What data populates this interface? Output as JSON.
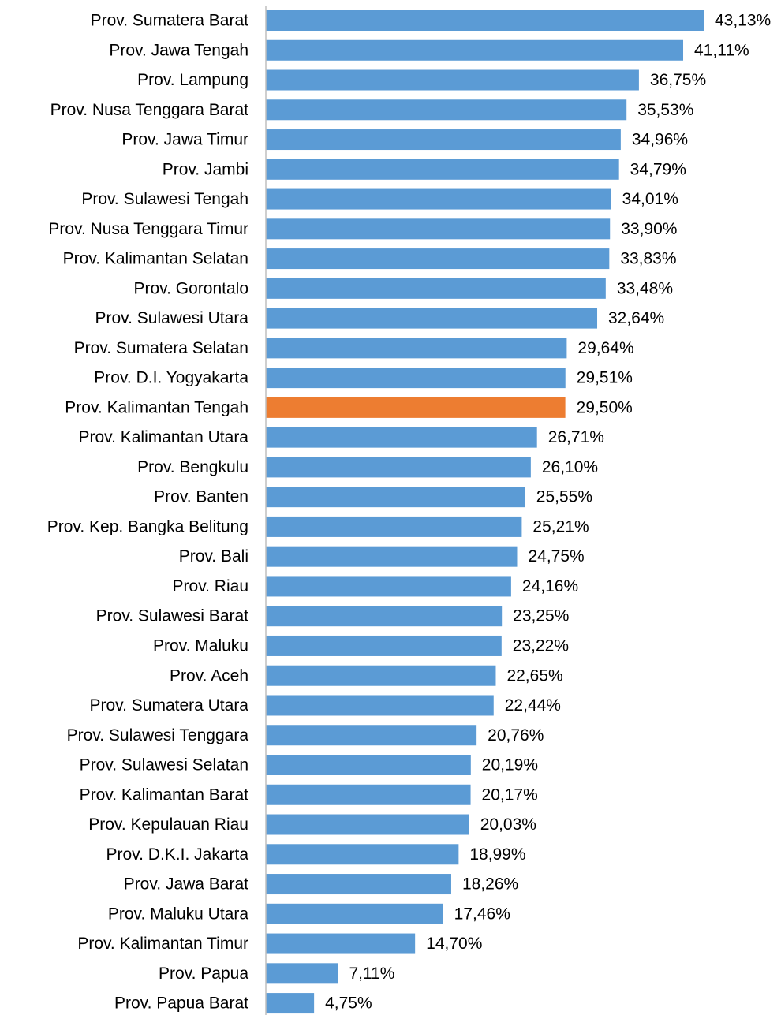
{
  "chart_data": {
    "type": "bar",
    "orientation": "horizontal",
    "categories": [
      "Prov. Sumatera Barat",
      "Prov. Jawa Tengah",
      "Prov. Lampung",
      "Prov. Nusa Tenggara Barat",
      "Prov. Jawa Timur",
      "Prov. Jambi",
      "Prov. Sulawesi Tengah",
      "Prov. Nusa Tenggara Timur",
      "Prov. Kalimantan Selatan",
      "Prov. Gorontalo",
      "Prov. Sulawesi Utara",
      "Prov. Sumatera Selatan",
      "Prov. D.I. Yogyakarta",
      "Prov. Kalimantan Tengah",
      "Prov. Kalimantan Utara",
      "Prov. Bengkulu",
      "Prov. Banten",
      "Prov. Kep. Bangka Belitung",
      "Prov. Bali",
      "Prov. Riau",
      "Prov. Sulawesi Barat",
      "Prov. Maluku",
      "Prov. Aceh",
      "Prov. Sumatera Utara",
      "Prov. Sulawesi Tenggara",
      "Prov. Sulawesi Selatan",
      "Prov. Kalimantan Barat",
      "Prov. Kepulauan Riau",
      "Prov. D.K.I. Jakarta",
      "Prov. Jawa Barat",
      "Prov. Maluku Utara",
      "Prov. Kalimantan Timur",
      "Prov. Papua",
      "Prov. Papua Barat"
    ],
    "values": [
      43.13,
      41.11,
      36.75,
      35.53,
      34.96,
      34.79,
      34.01,
      33.9,
      33.83,
      33.48,
      32.64,
      29.64,
      29.51,
      29.5,
      26.71,
      26.1,
      25.55,
      25.21,
      24.75,
      24.16,
      23.25,
      23.22,
      22.65,
      22.44,
      20.76,
      20.19,
      20.17,
      20.03,
      18.99,
      18.26,
      17.46,
      14.7,
      7.11,
      4.75
    ],
    "value_labels": [
      "43,13%",
      "41,11%",
      "36,75%",
      "35,53%",
      "34,96%",
      "34,79%",
      "34,01%",
      "33,90%",
      "33,83%",
      "33,48%",
      "32,64%",
      "29,64%",
      "29,51%",
      "29,50%",
      "26,71%",
      "26,10%",
      "25,55%",
      "25,21%",
      "24,75%",
      "24,16%",
      "23,25%",
      "23,22%",
      "22,65%",
      "22,44%",
      "20,76%",
      "20,19%",
      "20,17%",
      "20,03%",
      "18,99%",
      "18,26%",
      "17,46%",
      "14,70%",
      "7,11%",
      "4,75%"
    ],
    "colors": [
      "#5b9bd5",
      "#5b9bd5",
      "#5b9bd5",
      "#5b9bd5",
      "#5b9bd5",
      "#5b9bd5",
      "#5b9bd5",
      "#5b9bd5",
      "#5b9bd5",
      "#5b9bd5",
      "#5b9bd5",
      "#5b9bd5",
      "#5b9bd5",
      "#ed7d31",
      "#5b9bd5",
      "#5b9bd5",
      "#5b9bd5",
      "#5b9bd5",
      "#5b9bd5",
      "#5b9bd5",
      "#5b9bd5",
      "#5b9bd5",
      "#5b9bd5",
      "#5b9bd5",
      "#5b9bd5",
      "#5b9bd5",
      "#5b9bd5",
      "#5b9bd5",
      "#5b9bd5",
      "#5b9bd5",
      "#5b9bd5",
      "#5b9bd5",
      "#5b9bd5",
      "#5b9bd5"
    ],
    "xlim": [
      0,
      45
    ]
  }
}
